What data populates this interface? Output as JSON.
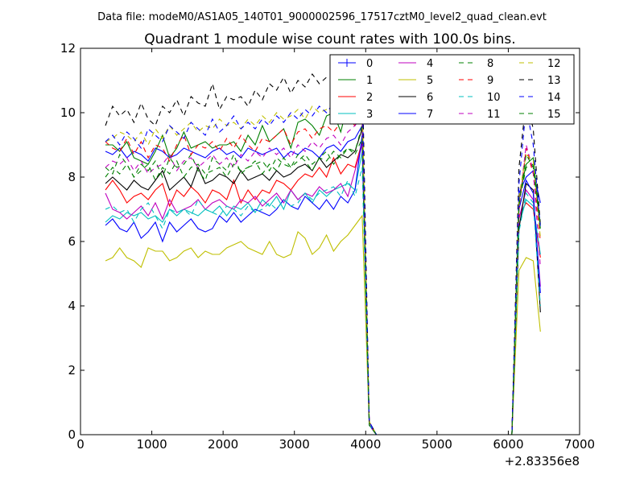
{
  "page": {
    "subtitle": "Data file: modeM0/AS1A05_140T01_9000002596_17517cztM0_level2_quad_clean.evt"
  },
  "chart_data": {
    "type": "line",
    "title": "Quadrant 1 module wise count rates with 100.0s bins.",
    "xlabel": "",
    "ylabel": "",
    "x_offset_label": "+2.83356e8",
    "xlim": [
      0,
      7000
    ],
    "ylim": [
      0,
      12
    ],
    "x_ticks": [
      0,
      1000,
      2000,
      3000,
      4000,
      5000,
      6000,
      7000
    ],
    "y_ticks": [
      0,
      2,
      4,
      6,
      8,
      10,
      12
    ],
    "grid": false,
    "legend_position": "top-right",
    "legend_columns": 4,
    "x": [
      350,
      450,
      550,
      650,
      750,
      850,
      950,
      1050,
      1150,
      1250,
      1350,
      1450,
      1550,
      1650,
      1750,
      1850,
      1950,
      2050,
      2150,
      2250,
      2350,
      2450,
      2550,
      2650,
      2750,
      2850,
      2950,
      3050,
      3150,
      3250,
      3350,
      3450,
      3550,
      3650,
      3750,
      3850,
      3950,
      4050,
      4150,
      4250,
      6050,
      6150,
      6250,
      6350,
      6450
    ],
    "series": [
      {
        "name": "0",
        "color": "#0000ff",
        "dash": "solid",
        "marker": "plus",
        "values": [
          8.8,
          8.7,
          8.9,
          8.6,
          8.8,
          8.7,
          8.5,
          8.9,
          8.8,
          8.6,
          8.7,
          8.9,
          8.8,
          8.7,
          8.6,
          8.8,
          8.9,
          8.7,
          8.8,
          8.6,
          8.9,
          8.8,
          8.7,
          8.8,
          8.9,
          8.6,
          8.8,
          8.7,
          8.9,
          8.8,
          8.6,
          8.9,
          9.0,
          8.8,
          9.1,
          9.2,
          9.6,
          0.3,
          0.0,
          0.0,
          0.0,
          7.5,
          8.0,
          8.2,
          7.2
        ]
      },
      {
        "name": "1",
        "color": "#008000",
        "dash": "solid",
        "values": [
          9.0,
          9.0,
          8.8,
          9.1,
          8.6,
          8.5,
          8.4,
          8.8,
          9.3,
          8.6,
          8.9,
          9.4,
          8.9,
          9.0,
          9.1,
          8.9,
          9.0,
          9.0,
          9.1,
          8.8,
          9.3,
          9.0,
          9.6,
          9.1,
          9.3,
          9.5,
          8.9,
          9.7,
          9.8,
          9.6,
          9.3,
          9.9,
          10.0,
          9.4,
          10.3,
          10.2,
          9.8,
          0.3,
          0.0,
          0.0,
          0.0,
          7.3,
          8.4,
          8.6,
          6.5
        ]
      },
      {
        "name": "2",
        "color": "#ff0000",
        "dash": "solid",
        "values": [
          7.6,
          7.9,
          7.6,
          7.2,
          7.4,
          7.5,
          7.3,
          7.6,
          7.8,
          7.1,
          7.6,
          7.4,
          7.7,
          7.5,
          7.2,
          7.6,
          7.5,
          7.3,
          7.9,
          7.2,
          7.6,
          7.3,
          7.6,
          7.5,
          7.9,
          7.8,
          7.6,
          7.9,
          8.1,
          8.0,
          8.3,
          8.0,
          8.6,
          8.1,
          8.4,
          8.3,
          9.1,
          0.4,
          0.0,
          0.0,
          0.0,
          6.8,
          7.2,
          7.0,
          5.5
        ]
      },
      {
        "name": "3",
        "color": "#00bfbf",
        "dash": "solid",
        "values": [
          6.6,
          6.8,
          6.7,
          6.9,
          6.8,
          6.9,
          6.7,
          6.8,
          6.6,
          7.0,
          6.8,
          7.0,
          6.9,
          6.8,
          7.0,
          6.9,
          7.1,
          6.8,
          7.1,
          7.0,
          7.2,
          6.9,
          7.3,
          7.1,
          7.4,
          7.0,
          7.6,
          7.3,
          7.5,
          7.2,
          7.6,
          7.4,
          7.6,
          7.7,
          7.8,
          7.6,
          8.8,
          0.3,
          0.0,
          0.0,
          0.0,
          6.5,
          7.3,
          7.1,
          5.6
        ]
      },
      {
        "name": "4",
        "color": "#bf00bf",
        "dash": "solid",
        "values": [
          7.5,
          7.0,
          6.9,
          6.7,
          6.9,
          7.1,
          6.8,
          7.2,
          6.7,
          7.3,
          6.9,
          7.0,
          7.1,
          7.3,
          7.0,
          7.2,
          7.3,
          7.1,
          7.0,
          7.3,
          7.2,
          7.4,
          7.1,
          7.3,
          7.5,
          7.2,
          7.6,
          7.3,
          7.5,
          7.4,
          7.7,
          7.5,
          7.6,
          7.8,
          7.4,
          8.2,
          9.0,
          0.3,
          0.0,
          0.0,
          0.0,
          6.7,
          7.6,
          7.3,
          4.6
        ]
      },
      {
        "name": "5",
        "color": "#bfbf00",
        "dash": "solid",
        "values": [
          5.4,
          5.5,
          5.8,
          5.5,
          5.4,
          5.2,
          5.8,
          5.7,
          5.7,
          5.4,
          5.5,
          5.7,
          5.8,
          5.5,
          5.7,
          5.6,
          5.6,
          5.8,
          5.9,
          6.0,
          5.8,
          5.7,
          5.6,
          6.0,
          5.6,
          5.5,
          5.6,
          6.3,
          6.1,
          5.6,
          5.8,
          6.2,
          5.7,
          6.0,
          6.2,
          6.5,
          6.8,
          0.3,
          0.0,
          0.0,
          0.0,
          5.1,
          5.5,
          5.4,
          3.2
        ]
      },
      {
        "name": "6",
        "color": "#000000",
        "dash": "solid",
        "values": [
          7.8,
          8.0,
          7.8,
          7.6,
          7.9,
          7.7,
          7.6,
          7.9,
          8.2,
          7.6,
          7.8,
          8.0,
          7.7,
          8.3,
          7.8,
          7.9,
          8.1,
          8.0,
          7.8,
          8.2,
          7.9,
          8.0,
          8.1,
          7.9,
          8.2,
          8.0,
          8.1,
          8.3,
          8.4,
          8.2,
          8.6,
          8.3,
          8.5,
          8.7,
          8.6,
          8.8,
          9.5,
          0.4,
          0.0,
          0.0,
          0.0,
          6.4,
          7.8,
          7.6,
          3.8
        ]
      },
      {
        "name": "7",
        "color": "#0000ff",
        "dash": "solid",
        "values": [
          6.5,
          6.7,
          6.4,
          6.3,
          6.6,
          6.1,
          6.3,
          6.6,
          6.0,
          6.6,
          6.3,
          6.5,
          6.7,
          6.4,
          6.3,
          6.4,
          6.8,
          6.6,
          6.9,
          6.6,
          6.8,
          7.0,
          6.9,
          6.8,
          7.0,
          7.3,
          7.1,
          7.0,
          7.4,
          7.2,
          7.0,
          7.3,
          7.0,
          7.4,
          7.2,
          7.6,
          9.3,
          0.3,
          0.0,
          0.0,
          0.0,
          7.0,
          7.9,
          7.5,
          4.4
        ]
      },
      {
        "name": "8",
        "color": "#008000",
        "dash": "dashed",
        "values": [
          8.3,
          8.1,
          8.7,
          8.4,
          8.0,
          8.4,
          8.2,
          8.5,
          8.0,
          8.6,
          8.3,
          8.4,
          8.7,
          8.2,
          7.9,
          8.6,
          8.4,
          8.2,
          8.7,
          8.1,
          8.3,
          8.4,
          8.5,
          8.2,
          8.6,
          8.4,
          8.3,
          8.7,
          8.5,
          8.2,
          8.6,
          8.8,
          8.4,
          8.7,
          8.9,
          8.8,
          9.6,
          0.3,
          0.0,
          0.0,
          0.0,
          7.2,
          8.3,
          8.4,
          6.3
        ]
      },
      {
        "name": "9",
        "color": "#ff0000",
        "dash": "dashed",
        "values": [
          9.1,
          8.9,
          8.8,
          9.2,
          8.7,
          9.1,
          8.6,
          9.0,
          8.9,
          8.5,
          9.0,
          9.3,
          8.7,
          9.0,
          8.9,
          9.1,
          8.8,
          9.2,
          8.9,
          9.3,
          9.0,
          8.8,
          9.2,
          9.1,
          9.3,
          9.5,
          9.0,
          9.4,
          9.5,
          9.2,
          9.5,
          9.6,
          9.4,
          9.7,
          9.8,
          9.6,
          10.0,
          0.3,
          0.0,
          0.0,
          0.0,
          7.0,
          8.9,
          8.1,
          6.0
        ]
      },
      {
        "name": "10",
        "color": "#00bfbf",
        "dash": "dashed",
        "values": [
          7.0,
          7.1,
          6.9,
          7.0,
          6.6,
          7.0,
          7.2,
          6.8,
          6.4,
          7.0,
          6.9,
          7.0,
          6.8,
          7.3,
          7.0,
          6.9,
          6.8,
          7.1,
          7.0,
          6.8,
          7.1,
          6.9,
          7.0,
          7.2,
          7.0,
          7.3,
          7.1,
          7.2,
          7.5,
          7.3,
          7.5,
          7.6,
          7.7,
          7.4,
          7.9,
          7.4,
          8.3,
          0.3,
          0.0,
          0.0,
          0.0,
          6.3,
          7.5,
          7.2,
          4.0
        ]
      },
      {
        "name": "11",
        "color": "#bf00bf",
        "dash": "dashed",
        "values": [
          8.3,
          8.5,
          8.4,
          8.6,
          8.2,
          8.5,
          8.1,
          8.3,
          8.4,
          8.7,
          8.2,
          8.5,
          8.6,
          8.3,
          8.5,
          8.7,
          8.4,
          8.6,
          8.3,
          8.7,
          8.5,
          8.8,
          8.6,
          8.9,
          8.7,
          8.9,
          8.6,
          9.0,
          8.8,
          9.1,
          8.9,
          9.2,
          9.3,
          9.0,
          9.4,
          9.6,
          9.9,
          0.3,
          0.0,
          0.0,
          0.0,
          7.1,
          9.0,
          8.2,
          5.2
        ]
      },
      {
        "name": "12",
        "color": "#bfbf00",
        "dash": "dashed",
        "values": [
          9.1,
          9.2,
          9.4,
          9.3,
          9.1,
          9.4,
          9.0,
          9.5,
          9.2,
          9.6,
          9.3,
          9.5,
          9.7,
          9.4,
          9.6,
          9.5,
          9.8,
          9.6,
          9.7,
          9.5,
          9.8,
          9.6,
          9.9,
          9.7,
          10.0,
          9.8,
          9.9,
          10.1,
          9.8,
          10.2,
          10.0,
          10.1,
          10.3,
          10.2,
          10.4,
          10.3,
          10.5,
          0.4,
          0.0,
          0.0,
          0.0,
          7.4,
          8.7,
          8.5,
          6.1
        ]
      },
      {
        "name": "13",
        "color": "#000000",
        "dash": "dashed",
        "values": [
          9.6,
          10.2,
          9.9,
          10.1,
          9.7,
          10.3,
          9.8,
          9.6,
          10.2,
          10.0,
          10.4,
          9.9,
          10.5,
          10.3,
          10.2,
          10.9,
          10.1,
          10.5,
          10.4,
          10.5,
          10.2,
          10.7,
          10.4,
          10.9,
          10.7,
          11.1,
          10.6,
          11.0,
          10.8,
          11.2,
          10.9,
          11.1,
          11.0,
          11.2,
          11.3,
          11.4,
          11.5,
          0.4,
          0.0,
          0.0,
          0.0,
          8.3,
          10.4,
          9.5,
          6.5
        ]
      },
      {
        "name": "14",
        "color": "#0000ff",
        "dash": "dashed",
        "values": [
          9.1,
          9.3,
          9.0,
          9.4,
          9.2,
          8.9,
          9.5,
          9.3,
          9.1,
          9.6,
          9.4,
          9.2,
          9.7,
          9.5,
          9.3,
          9.8,
          9.4,
          9.6,
          9.9,
          9.5,
          9.7,
          9.5,
          9.8,
          9.6,
          9.9,
          9.7,
          10.0,
          9.8,
          10.1,
          9.9,
          10.2,
          10.0,
          10.3,
          10.1,
          10.5,
          10.2,
          10.6,
          0.4,
          0.0,
          0.0,
          0.0,
          7.8,
          10.2,
          9.0,
          6.4
        ]
      },
      {
        "name": "15",
        "color": "#008000",
        "dash": "dashed",
        "values": [
          8.0,
          8.3,
          8.1,
          8.4,
          8.0,
          8.2,
          8.4,
          7.9,
          8.3,
          8.1,
          8.5,
          8.0,
          8.3,
          8.4,
          8.1,
          8.2,
          8.3,
          8.0,
          8.4,
          8.2,
          8.3,
          8.5,
          8.1,
          8.4,
          8.2,
          8.6,
          8.3,
          8.5,
          8.7,
          8.4,
          8.6,
          8.5,
          8.8,
          8.6,
          8.9,
          8.7,
          9.2,
          0.3,
          0.0,
          0.0,
          0.0,
          7.1,
          8.7,
          8.3,
          6.4
        ]
      }
    ]
  }
}
